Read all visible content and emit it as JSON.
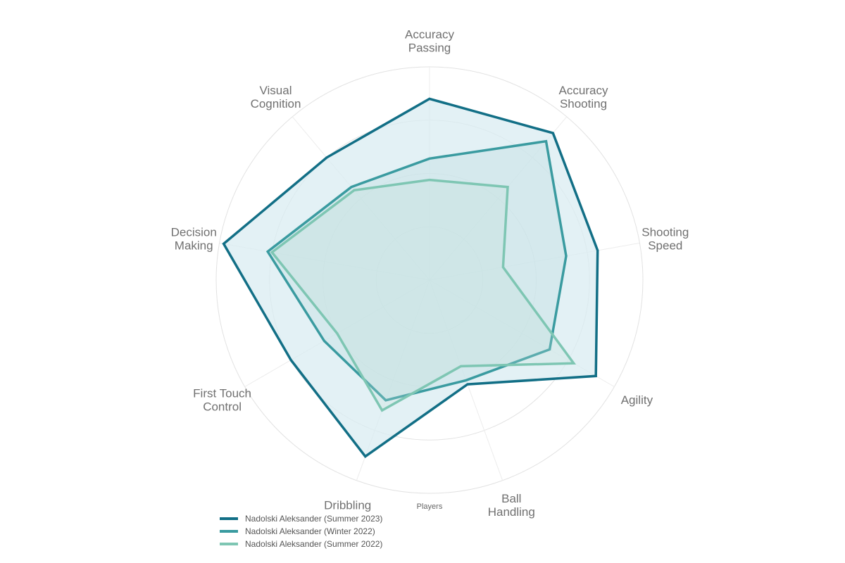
{
  "chart_data": {
    "type": "radar",
    "title": "",
    "axes": [
      [
        "Accuracy",
        "Passing"
      ],
      [
        "Accuracy",
        "Shooting"
      ],
      [
        "Shooting",
        "Speed"
      ],
      [
        "Agility"
      ],
      [
        "Ball",
        "Handling"
      ],
      [
        "Dribbling"
      ],
      [
        "First Touch",
        "Control"
      ],
      [
        "Decision",
        "Making"
      ],
      [
        "Visual",
        "Cognition"
      ]
    ],
    "rlim": [
      0,
      100
    ],
    "gridlines": [
      25,
      50,
      75,
      100
    ],
    "series": [
      {
        "name": "Nadolski Aleksander (Summer 2023)",
        "color": "#126f86",
        "fill": "#d9ecf1",
        "values": [
          85,
          90,
          80,
          90,
          52,
          88,
          75,
          98,
          75
        ]
      },
      {
        "name": "Nadolski Aleksander (Winter 2022)",
        "color": "#3a9ba0",
        "fill": "none",
        "values": [
          57,
          85,
          65,
          65,
          50,
          60,
          57,
          77,
          57
        ]
      },
      {
        "name": "Nadolski Aleksander (Summer 2022)",
        "color": "#7ec6b3",
        "fill": "none",
        "values": [
          47,
          57,
          35,
          78,
          43,
          65,
          50,
          75,
          55
        ]
      }
    ],
    "legend": {
      "title": "Players",
      "position": "bottom-left"
    }
  }
}
